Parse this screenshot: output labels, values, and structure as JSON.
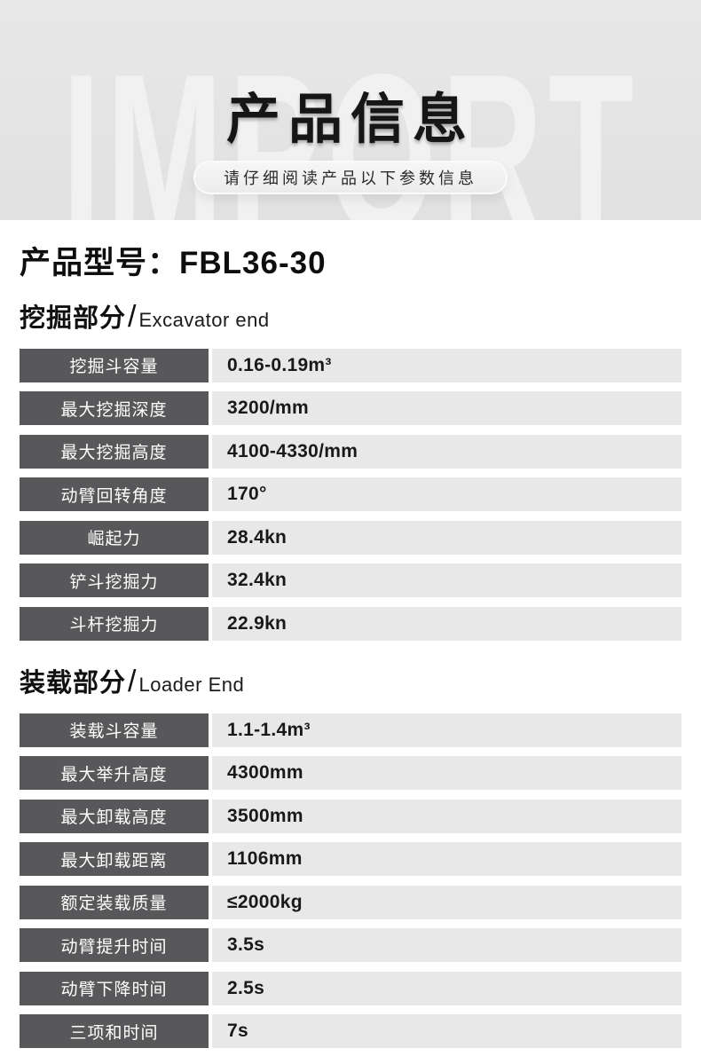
{
  "hero": {
    "watermark": "IMPORT",
    "title": "产品信息",
    "subtitle": "请仔细阅读产品以下参数信息"
  },
  "model": {
    "label": "产品型号：",
    "value": "FBL36-30"
  },
  "sections": [
    {
      "title_zh": "挖掘部分",
      "divider": "/",
      "title_en": "Excavator end",
      "rows": [
        {
          "label": "挖掘斗容量",
          "value": "0.16-0.19m³"
        },
        {
          "label": "最大挖掘深度",
          "value": "3200/mm"
        },
        {
          "label": "最大挖掘高度",
          "value": "4100-4330/mm"
        },
        {
          "label": "动臂回转角度",
          "value": "170°"
        },
        {
          "label": "崛起力",
          "value": "28.4kn"
        },
        {
          "label": "铲斗挖掘力",
          "value": "32.4kn"
        },
        {
          "label": "斗杆挖掘力",
          "value": "22.9kn"
        }
      ]
    },
    {
      "title_zh": "装载部分",
      "divider": "/",
      "title_en": "Loader End",
      "rows": [
        {
          "label": "装载斗容量",
          "value": "1.1-1.4m³"
        },
        {
          "label": "最大举升高度",
          "value": "4300mm"
        },
        {
          "label": "最大卸载高度",
          "value": "3500mm"
        },
        {
          "label": "最大卸载距离",
          "value": "1106mm"
        },
        {
          "label": "额定装载质量",
          "value": "≤2000kg"
        },
        {
          "label": "动臂提升时间",
          "value": "3.5s"
        },
        {
          "label": "动臂下降时间",
          "value": "2.5s"
        },
        {
          "label": "三项和时间",
          "value": "7s"
        }
      ]
    }
  ],
  "colors": {
    "hero_background": "#e5e5e6",
    "watermark_text": "#f1f1f2",
    "title_text": "#161616",
    "label_background": "#58585a",
    "label_text": "#ffffff",
    "value_background": "#e8e8e9",
    "value_text": "#19191a"
  }
}
